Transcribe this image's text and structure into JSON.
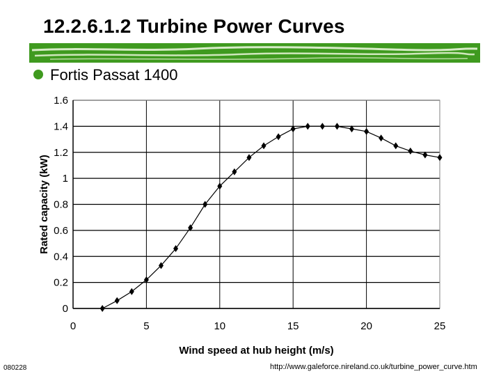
{
  "slide": {
    "title": "12.2.6.1.2 Turbine Power Curves",
    "bullet": "Fortis Passat 1400",
    "footer_id": "080228",
    "footer_url": "http://www.galeforce.nireland.co.uk/turbine_power_curve.htm",
    "accent_color": "#3f9a1f"
  },
  "chart_data": {
    "type": "line",
    "title": "",
    "xlabel": "Wind speed at hub height (m/s)",
    "ylabel": "Rated capacity (kW)",
    "xlim": [
      0,
      25
    ],
    "ylim": [
      0,
      1.6
    ],
    "x_ticks": [
      "0",
      "5",
      "10",
      "15",
      "20",
      "25"
    ],
    "y_ticks": [
      "0",
      "0.2",
      "0.4",
      "0.6",
      "0.8",
      "1",
      "1.2",
      "1.4",
      "1.6"
    ],
    "grid": "horizontal",
    "series": [
      {
        "x": [
          2,
          3,
          4,
          5,
          6,
          7,
          8,
          9,
          10,
          11,
          12,
          13,
          14,
          15,
          16,
          17,
          18,
          19,
          20,
          21,
          22,
          23,
          24,
          25
        ],
        "y": [
          0.0,
          0.06,
          0.13,
          0.22,
          0.33,
          0.46,
          0.62,
          0.8,
          0.94,
          1.05,
          1.16,
          1.25,
          1.32,
          1.38,
          1.4,
          1.4,
          1.4,
          1.38,
          1.36,
          1.31,
          1.25,
          1.21,
          1.18,
          1.16
        ]
      }
    ]
  }
}
